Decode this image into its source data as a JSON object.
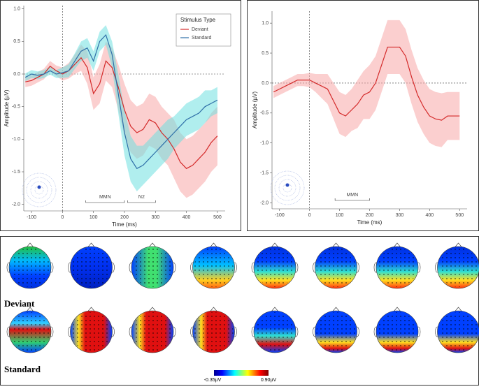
{
  "chart_data": [
    {
      "type": "line",
      "xlabel": "Time (ms)",
      "ylabel": "Amplitude (µV)",
      "legend": "top-right",
      "legend_title": "Stimulus Type",
      "xlim": [
        -125,
        525
      ],
      "xticks": [
        -100,
        0,
        100,
        200,
        300,
        400,
        500
      ],
      "ylim": [
        -2.1,
        1.05
      ],
      "yticks": [
        {
          "value": -2,
          "label": "-2.0"
        },
        {
          "value": -1.5,
          "label": "-1.5"
        },
        {
          "value": -1,
          "label": "-1.0"
        },
        {
          "value": -0.5,
          "label": "-0.5"
        },
        {
          "value": 0,
          "label": "0.0"
        },
        {
          "value": 0.5,
          "label": "0.5"
        },
        {
          "value": 1,
          "label": "1.0"
        }
      ],
      "x": [
        -120,
        -100,
        -80,
        -60,
        -40,
        -20,
        0,
        20,
        40,
        60,
        80,
        100,
        120,
        140,
        160,
        180,
        200,
        220,
        240,
        260,
        280,
        300,
        320,
        340,
        360,
        380,
        400,
        420,
        440,
        460,
        480,
        500
      ],
      "series": [
        {
          "name": "Deviant",
          "color": "#d42a2a",
          "band_color": "#f8a8a8",
          "values": [
            -0.12,
            -0.1,
            -0.05,
            0.0,
            0.12,
            0.05,
            0.0,
            0.05,
            0.15,
            0.25,
            0.1,
            -0.3,
            -0.15,
            0.2,
            0.1,
            -0.2,
            -0.55,
            -0.8,
            -0.9,
            -0.85,
            -0.7,
            -0.75,
            -0.9,
            -1.0,
            -1.15,
            -1.35,
            -1.45,
            -1.4,
            -1.3,
            -1.2,
            -1.05,
            -0.95
          ],
          "upper": [
            -0.04,
            -0.02,
            0.03,
            0.08,
            0.2,
            0.13,
            0.1,
            0.17,
            0.3,
            0.45,
            0.35,
            -0.05,
            0.15,
            0.5,
            0.4,
            0.15,
            -0.15,
            -0.4,
            -0.5,
            -0.45,
            -0.3,
            -0.35,
            -0.5,
            -0.6,
            -0.7,
            -0.9,
            -1.0,
            -0.95,
            -0.85,
            -0.75,
            -0.6,
            -0.5
          ],
          "lower": [
            -0.2,
            -0.18,
            -0.13,
            -0.08,
            0.04,
            -0.03,
            -0.1,
            -0.07,
            0.0,
            0.05,
            -0.15,
            -0.55,
            -0.45,
            -0.1,
            -0.2,
            -0.55,
            -0.95,
            -1.2,
            -1.3,
            -1.25,
            -1.1,
            -1.15,
            -1.3,
            -1.4,
            -1.6,
            -1.8,
            -1.9,
            -1.85,
            -1.75,
            -1.65,
            -1.5,
            -1.4
          ]
        },
        {
          "name": "Standard",
          "color": "#2f6fa8",
          "band_color": "#6fe0e0",
          "values": [
            -0.05,
            0.0,
            -0.02,
            0.0,
            0.05,
            0.0,
            0.02,
            0.05,
            0.2,
            0.35,
            0.4,
            0.2,
            0.5,
            0.6,
            0.3,
            -0.3,
            -0.9,
            -1.3,
            -1.45,
            -1.4,
            -1.3,
            -1.2,
            -1.1,
            -1.0,
            -0.9,
            -0.8,
            -0.7,
            -0.65,
            -0.6,
            -0.5,
            -0.45,
            -0.4
          ],
          "upper": [
            0.01,
            0.06,
            0.04,
            0.06,
            0.11,
            0.06,
            0.1,
            0.15,
            0.32,
            0.5,
            0.55,
            0.35,
            0.65,
            0.75,
            0.5,
            0.0,
            -0.55,
            -0.95,
            -1.1,
            -1.1,
            -1.0,
            -0.9,
            -0.8,
            -0.7,
            -0.65,
            -0.55,
            -0.45,
            -0.4,
            -0.35,
            -0.25,
            -0.25,
            -0.2
          ],
          "lower": [
            -0.11,
            -0.06,
            -0.08,
            -0.06,
            -0.01,
            -0.06,
            -0.06,
            -0.05,
            0.08,
            0.2,
            0.25,
            0.05,
            0.35,
            0.45,
            0.1,
            -0.6,
            -1.25,
            -1.65,
            -1.8,
            -1.7,
            -1.6,
            -1.5,
            -1.4,
            -1.3,
            -1.15,
            -1.05,
            -0.95,
            -0.9,
            -0.85,
            -0.75,
            -0.65,
            -0.6
          ]
        }
      ],
      "annotations": [
        {
          "text": "MMN",
          "start": 75,
          "end": 200
        },
        {
          "text": "N2",
          "start": 210,
          "end": 300
        }
      ]
    },
    {
      "type": "line",
      "xlabel": "Time (ms)",
      "ylabel": "Amplitude (µV)",
      "xlim": [
        -125,
        525
      ],
      "xticks": [
        -100,
        0,
        100,
        200,
        300,
        400,
        500
      ],
      "ylim": [
        -2.1,
        1.2
      ],
      "yticks": [
        {
          "value": -2,
          "label": "-2.0"
        },
        {
          "value": -1.5,
          "label": "-1.5"
        },
        {
          "value": -1,
          "label": "-1.0"
        },
        {
          "value": -0.5,
          "label": "-0.5"
        },
        {
          "value": 0,
          "label": "0.0"
        },
        {
          "value": 0.5,
          "label": "0.5"
        },
        {
          "value": 1,
          "label": "1.0"
        }
      ],
      "x": [
        -120,
        -100,
        -80,
        -60,
        -40,
        -20,
        0,
        20,
        40,
        60,
        80,
        100,
        120,
        140,
        160,
        180,
        200,
        220,
        240,
        260,
        280,
        300,
        320,
        340,
        360,
        380,
        400,
        420,
        440,
        460,
        480,
        500
      ],
      "series": [
        {
          "color": "#d42a2a",
          "band_color": "#f8a8a8",
          "values": [
            -0.15,
            -0.1,
            -0.05,
            0.0,
            0.05,
            0.05,
            0.05,
            0.0,
            -0.05,
            -0.1,
            -0.3,
            -0.5,
            -0.55,
            -0.45,
            -0.35,
            -0.2,
            -0.15,
            0.0,
            0.3,
            0.6,
            0.6,
            0.6,
            0.45,
            0.1,
            -0.2,
            -0.4,
            -0.55,
            -0.6,
            -0.62,
            -0.55,
            -0.55,
            -0.55
          ],
          "upper": [
            -0.05,
            0.0,
            0.05,
            0.1,
            0.15,
            0.15,
            0.17,
            0.15,
            0.15,
            0.15,
            0.0,
            -0.15,
            -0.2,
            -0.1,
            0.05,
            0.2,
            0.3,
            0.45,
            0.75,
            1.05,
            1.05,
            1.05,
            0.9,
            0.55,
            0.25,
            0.05,
            -0.1,
            -0.15,
            -0.17,
            -0.15,
            -0.15,
            -0.15
          ],
          "lower": [
            -0.25,
            -0.2,
            -0.15,
            -0.1,
            -0.05,
            -0.05,
            -0.07,
            -0.15,
            -0.25,
            -0.35,
            -0.6,
            -0.85,
            -0.9,
            -0.8,
            -0.75,
            -0.6,
            -0.6,
            -0.45,
            -0.15,
            0.15,
            0.15,
            0.15,
            0.0,
            -0.35,
            -0.65,
            -0.85,
            -1.0,
            -1.05,
            -1.07,
            -0.95,
            -0.95,
            -0.95
          ]
        }
      ],
      "annotations": [
        {
          "text": "MMN",
          "start": 85,
          "end": 200
        }
      ]
    }
  ],
  "topomaps": {
    "rows": [
      {
        "label": "Deviant"
      },
      {
        "label": "Standard"
      }
    ],
    "colorbar": {
      "min_label": "-0.35µV",
      "max_label": "0.90µV"
    }
  }
}
